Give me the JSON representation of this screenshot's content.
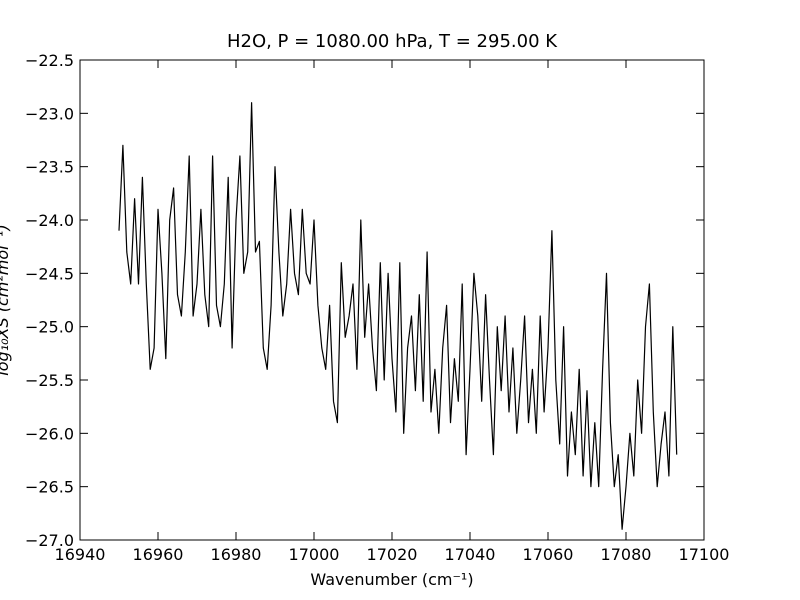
{
  "chart_data": {
    "type": "line",
    "title": "H2O, P = 1080.00 hPa, T = 295.00 K",
    "xlabel": "Wavenumber (cm⁻¹)",
    "ylabel": "log₁₀XS (cm²mol⁻¹)",
    "xlim": [
      16940,
      17100
    ],
    "ylim": [
      -27.0,
      -22.5
    ],
    "xticks": [
      16940,
      16960,
      16980,
      17000,
      17020,
      17040,
      17060,
      17080,
      17100
    ],
    "yticks": [
      {
        "value": -27.0,
        "label": "−27.0"
      },
      {
        "value": -26.5,
        "label": "−26.5"
      },
      {
        "value": -26.0,
        "label": "−26.0"
      },
      {
        "value": -25.5,
        "label": "−25.5"
      },
      {
        "value": -25.0,
        "label": "−25.0"
      },
      {
        "value": -24.5,
        "label": "−24.5"
      },
      {
        "value": -24.0,
        "label": "−24.0"
      },
      {
        "value": -23.5,
        "label": "−23.5"
      },
      {
        "value": -23.0,
        "label": "−23.0"
      },
      {
        "value": -22.5,
        "label": "−22.5"
      }
    ],
    "x": [
      16950,
      16951,
      16952,
      16953,
      16954,
      16955,
      16956,
      16957,
      16958,
      16959,
      16960,
      16961,
      16962,
      16963,
      16964,
      16965,
      16966,
      16967,
      16968,
      16969,
      16970,
      16971,
      16972,
      16973,
      16974,
      16975,
      16976,
      16977,
      16978,
      16979,
      16980,
      16981,
      16982,
      16983,
      16984,
      16985,
      16986,
      16987,
      16988,
      16989,
      16990,
      16991,
      16992,
      16993,
      16994,
      16995,
      16996,
      16997,
      16998,
      16999,
      17000,
      17001,
      17002,
      17003,
      17004,
      17005,
      17006,
      17007,
      17008,
      17009,
      17010,
      17011,
      17012,
      17013,
      17014,
      17015,
      17016,
      17017,
      17018,
      17019,
      17020,
      17021,
      17022,
      17023,
      17024,
      17025,
      17026,
      17027,
      17028,
      17029,
      17030,
      17031,
      17032,
      17033,
      17034,
      17035,
      17036,
      17037,
      17038,
      17039,
      17040,
      17041,
      17042,
      17043,
      17044,
      17045,
      17046,
      17047,
      17048,
      17049,
      17050,
      17051,
      17052,
      17053,
      17054,
      17055,
      17056,
      17057,
      17058,
      17059,
      17060,
      17061,
      17062,
      17063,
      17064,
      17065,
      17066,
      17067,
      17068,
      17069,
      17070,
      17071,
      17072,
      17073,
      17074,
      17075,
      17076,
      17077,
      17078,
      17079,
      17080,
      17081,
      17082,
      17083,
      17084,
      17085,
      17086,
      17087,
      17088,
      17089,
      17090,
      17091,
      17092,
      17093
    ],
    "series": [
      {
        "color": "#000000",
        "values": [
          -24.1,
          -23.3,
          -24.3,
          -24.6,
          -23.8,
          -24.6,
          -23.6,
          -24.6,
          -25.4,
          -25.2,
          -23.9,
          -24.5,
          -25.3,
          -24.0,
          -23.7,
          -24.7,
          -24.9,
          -24.3,
          -23.4,
          -24.9,
          -24.6,
          -23.9,
          -24.7,
          -25.0,
          -23.4,
          -24.8,
          -25.0,
          -24.6,
          -23.6,
          -25.2,
          -24.0,
          -23.4,
          -24.5,
          -24.3,
          -22.9,
          -24.3,
          -24.2,
          -25.2,
          -25.4,
          -24.8,
          -23.5,
          -24.3,
          -24.9,
          -24.6,
          -23.9,
          -24.5,
          -24.7,
          -23.9,
          -24.5,
          -24.6,
          -24.0,
          -24.8,
          -25.2,
          -25.4,
          -24.8,
          -25.7,
          -25.9,
          -24.4,
          -25.1,
          -24.9,
          -24.6,
          -25.4,
          -24.0,
          -25.1,
          -24.6,
          -25.2,
          -25.6,
          -24.4,
          -25.5,
          -24.5,
          -25.3,
          -25.8,
          -24.4,
          -26.0,
          -25.2,
          -24.9,
          -25.6,
          -24.7,
          -25.7,
          -24.3,
          -25.8,
          -25.4,
          -26.0,
          -25.2,
          -24.8,
          -25.9,
          -25.3,
          -25.7,
          -24.6,
          -26.2,
          -25.4,
          -24.5,
          -24.9,
          -25.7,
          -24.7,
          -25.5,
          -26.2,
          -25.0,
          -25.6,
          -24.9,
          -25.8,
          -25.2,
          -26.0,
          -25.5,
          -24.9,
          -25.9,
          -25.4,
          -26.0,
          -24.9,
          -25.8,
          -25.2,
          -24.1,
          -25.5,
          -26.1,
          -25.0,
          -26.4,
          -25.8,
          -26.2,
          -25.4,
          -26.4,
          -25.6,
          -26.5,
          -25.9,
          -26.5,
          -25.4,
          -24.5,
          -25.9,
          -26.5,
          -26.2,
          -26.9,
          -26.5,
          -26.0,
          -26.4,
          -25.5,
          -26.0,
          -25.0,
          -24.6,
          -25.8,
          -26.5,
          -26.1,
          -25.8,
          -26.4,
          -25.0,
          -26.2
        ]
      }
    ]
  }
}
